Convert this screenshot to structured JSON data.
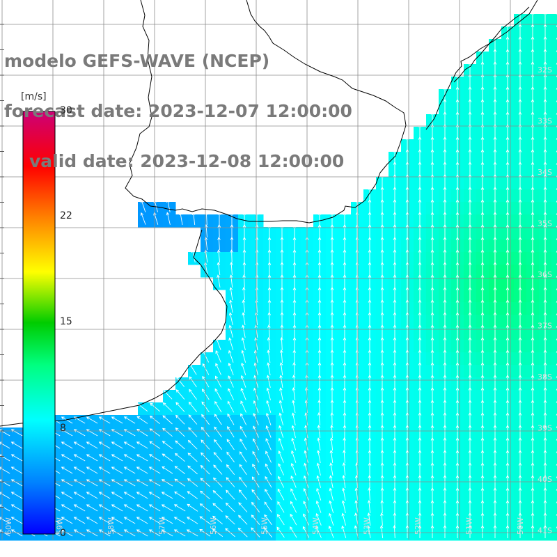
{
  "title": {
    "line1": "modelo GEFS-WAVE (NCEP)",
    "line2": "forecast date: 2023-12-07 12:00:00",
    "line3": "valid date: 2023-12-08 12:00:00"
  },
  "colorbar": {
    "unit": "[m/s]",
    "ticks": [
      "30",
      "22",
      "15",
      "8",
      "0"
    ],
    "tick_values": [
      30,
      22,
      15,
      8,
      0
    ],
    "colors": [
      "#0000ff",
      "#0080ff",
      "#00ffff",
      "#00ff00",
      "#ffff00",
      "#ff8000",
      "#ff0000",
      "#cc0066"
    ]
  },
  "latitude_labels": [
    "32S",
    "33S",
    "34S",
    "35S",
    "36S",
    "37S",
    "38S",
    "39S",
    "40S",
    "41S"
  ],
  "longitude_labels": [
    "60W",
    "59W",
    "58W",
    "57W",
    "56W",
    "55W",
    "54W",
    "53W",
    "52W",
    "51W",
    "50W"
  ],
  "colors": {
    "land": "#ffffff",
    "grid": "#8c8c8c",
    "coast": "#000000",
    "arrows": "#ffffff",
    "title": "#7a7a7a"
  }
}
